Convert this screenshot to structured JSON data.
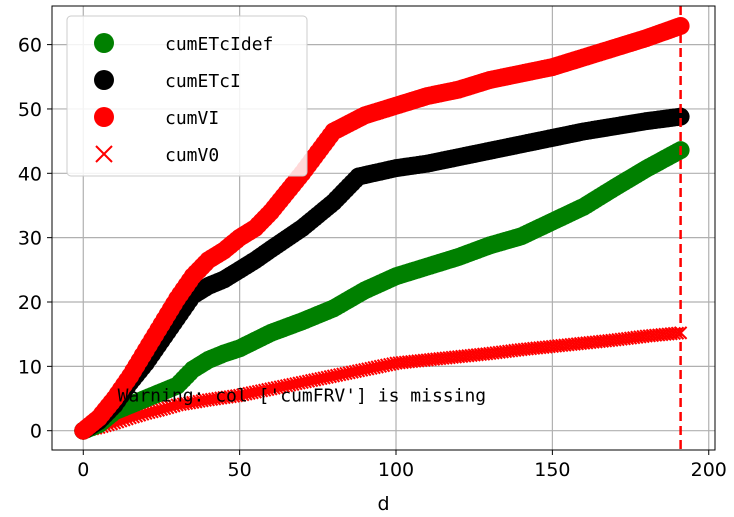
{
  "chart_data": {
    "type": "scatter",
    "title": "",
    "xlabel": "d",
    "ylabel": "",
    "xlim": [
      -10,
      202
    ],
    "ylim": [
      -3,
      66
    ],
    "xticks": [
      0,
      50,
      100,
      150,
      200
    ],
    "yticks": [
      0,
      10,
      20,
      30,
      40,
      50,
      60
    ],
    "grid": true,
    "legend_position": "top-left",
    "vline": {
      "x": 191,
      "color": "#ff0000",
      "style": "dashed"
    },
    "annotation": {
      "text": "Warning: col ['cumFRV'] is missing",
      "x": 11,
      "y": 4.5
    },
    "series": [
      {
        "name": "cumETcIdef",
        "color": "#008000",
        "marker": "circle",
        "points": [
          [
            0,
            0
          ],
          [
            5,
            1
          ],
          [
            10,
            3
          ],
          [
            15,
            4
          ],
          [
            20,
            5
          ],
          [
            25,
            6
          ],
          [
            30,
            7
          ],
          [
            35,
            9.5
          ],
          [
            40,
            11
          ],
          [
            45,
            12
          ],
          [
            50,
            12.8
          ],
          [
            55,
            14
          ],
          [
            60,
            15.2
          ],
          [
            70,
            17
          ],
          [
            80,
            19
          ],
          [
            90,
            21.8
          ],
          [
            100,
            24
          ],
          [
            110,
            25.5
          ],
          [
            120,
            27
          ],
          [
            130,
            28.8
          ],
          [
            140,
            30.2
          ],
          [
            150,
            32.5
          ],
          [
            160,
            34.8
          ],
          [
            170,
            37.8
          ],
          [
            180,
            40.7
          ],
          [
            191,
            43.6
          ]
        ]
      },
      {
        "name": "cumETcI",
        "color": "#000000",
        "marker": "circle",
        "points": [
          [
            0,
            0
          ],
          [
            5,
            1.5
          ],
          [
            10,
            4
          ],
          [
            15,
            7.5
          ],
          [
            20,
            10.5
          ],
          [
            25,
            14
          ],
          [
            30,
            17.5
          ],
          [
            35,
            21
          ],
          [
            40,
            22.5
          ],
          [
            45,
            23.5
          ],
          [
            50,
            25
          ],
          [
            55,
            26.5
          ],
          [
            60,
            28.2
          ],
          [
            70,
            31.5
          ],
          [
            80,
            35.5
          ],
          [
            88,
            39.5
          ],
          [
            100,
            40.8
          ],
          [
            110,
            41.5
          ],
          [
            120,
            42.5
          ],
          [
            130,
            43.5
          ],
          [
            140,
            44.5
          ],
          [
            150,
            45.5
          ],
          [
            160,
            46.5
          ],
          [
            170,
            47.3
          ],
          [
            180,
            48.1
          ],
          [
            191,
            48.8
          ]
        ]
      },
      {
        "name": "cumVI",
        "color": "#ff0000",
        "marker": "circle",
        "points": [
          [
            0,
            0
          ],
          [
            5,
            2
          ],
          [
            10,
            5
          ],
          [
            15,
            8.5
          ],
          [
            20,
            12.5
          ],
          [
            25,
            16.5
          ],
          [
            30,
            20.5
          ],
          [
            35,
            24
          ],
          [
            40,
            26.5
          ],
          [
            45,
            28
          ],
          [
            50,
            30
          ],
          [
            55,
            31.5
          ],
          [
            60,
            34
          ],
          [
            70,
            40
          ],
          [
            80,
            46.5
          ],
          [
            90,
            49
          ],
          [
            100,
            50.5
          ],
          [
            110,
            52
          ],
          [
            120,
            53
          ],
          [
            130,
            54.5
          ],
          [
            140,
            55.5
          ],
          [
            150,
            56.5
          ],
          [
            160,
            58
          ],
          [
            170,
            59.5
          ],
          [
            180,
            61
          ],
          [
            191,
            62.9
          ]
        ]
      },
      {
        "name": "cumV0",
        "color": "#ff0000",
        "marker": "x",
        "points": [
          [
            0,
            0
          ],
          [
            5,
            0.5
          ],
          [
            10,
            1.2
          ],
          [
            15,
            2
          ],
          [
            20,
            2.7
          ],
          [
            25,
            3.3
          ],
          [
            30,
            4
          ],
          [
            40,
            4.8
          ],
          [
            50,
            5.5
          ],
          [
            60,
            6.5
          ],
          [
            70,
            7.5
          ],
          [
            80,
            8.5
          ],
          [
            90,
            9.5
          ],
          [
            100,
            10.5
          ],
          [
            110,
            11
          ],
          [
            120,
            11.5
          ],
          [
            130,
            12
          ],
          [
            140,
            12.6
          ],
          [
            150,
            13.1
          ],
          [
            160,
            13.6
          ],
          [
            170,
            14.1
          ],
          [
            180,
            14.7
          ],
          [
            191,
            15.2
          ]
        ]
      }
    ]
  }
}
